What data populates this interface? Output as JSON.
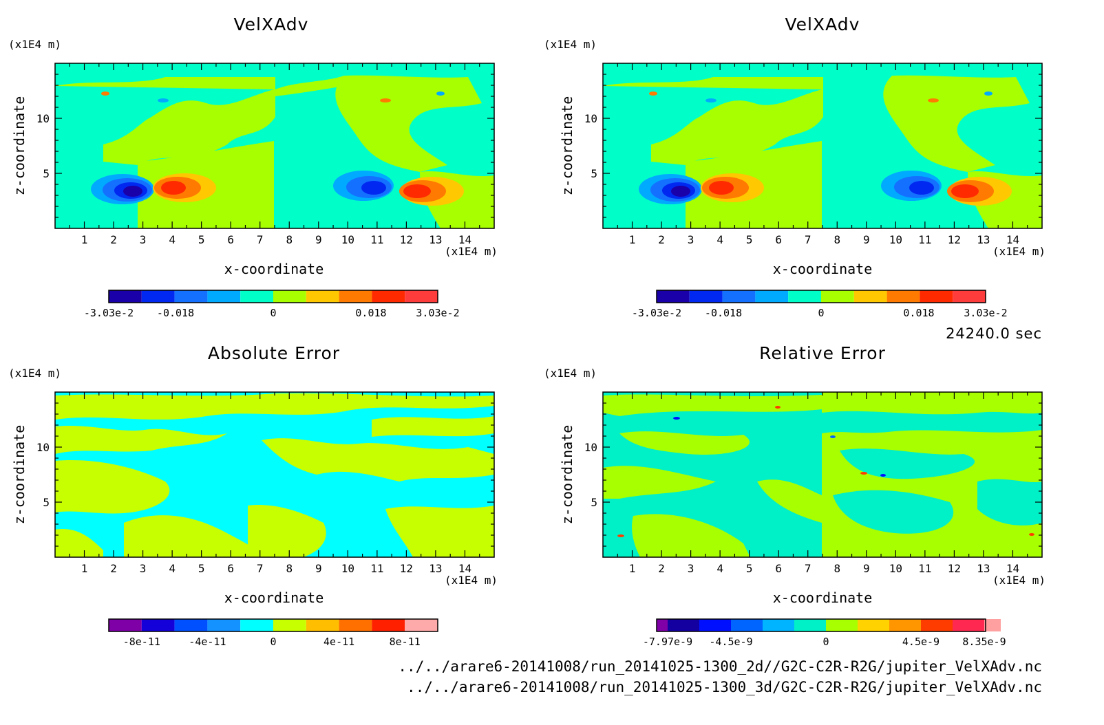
{
  "colors": {
    "velocity_bins": [
      "#1a00a8",
      "#0028f0",
      "#1470ff",
      "#00aaff",
      "#00ffc8",
      "#a8ff00",
      "#ffc800",
      "#ff7a00",
      "#ff2a00",
      "#ff3c3c"
    ],
    "abs_bins": [
      "#8000a8",
      "#1400d8",
      "#0050ff",
      "#1492ff",
      "#00ffff",
      "#c8ff00",
      "#ffbe00",
      "#ff7000",
      "#ff2000",
      "#ffaaaa"
    ],
    "rel_bins": [
      "#8000a8",
      "#1400a0",
      "#0010ff",
      "#0064ff",
      "#00b4ff",
      "#00f0c8",
      "#a8ff00",
      "#ffd200",
      "#ff9600",
      "#ff3c00",
      "#ff2850",
      "#ffa0a0"
    ]
  },
  "x_unit": "(x1E4 m)",
  "y_unit": "(x1E4 m)",
  "xlabel": "x-coordinate",
  "ylabel": "z-coordinate",
  "x_ticks": [
    "1",
    "2",
    "3",
    "4",
    "5",
    "6",
    "7",
    "8",
    "9",
    "10",
    "11",
    "12",
    "13",
    "14"
  ],
  "y_ticks": [
    "5",
    "10"
  ],
  "time_label": "24240.0 sec",
  "footer": {
    "line1": "../../arare6-20141008/run_20141025-1300_2d//G2C-C2R-R2G/jupiter_VelXAdv.nc",
    "line2": "../../arare6-20141008/run_20141025-1300_3d/G2C-C2R-R2G/jupiter_VelXAdv.nc"
  },
  "chart_data": [
    {
      "type": "heatmap",
      "title": "VelXAdv",
      "xlabel": "x-coordinate",
      "ylabel": "z-coordinate",
      "xlim": [
        0,
        15
      ],
      "ylim": [
        0,
        15
      ],
      "colorbar": {
        "labels": [
          "-3.03e-2",
          "-0.018",
          "0",
          "0.018",
          "3.03e-2"
        ],
        "bins": 10,
        "range": [
          -0.0303,
          0.0303
        ]
      },
      "features": [
        {
          "x": 2.7,
          "z": 3.4,
          "value": -0.0303
        },
        {
          "x": 4.2,
          "z": 3.6,
          "value": 0.024
        },
        {
          "x": 10.9,
          "z": 3.5,
          "value": -0.024
        },
        {
          "x": 12.3,
          "z": 3.4,
          "value": 0.0303
        }
      ]
    },
    {
      "type": "heatmap",
      "title": "VelXAdv",
      "xlabel": "x-coordinate",
      "ylabel": "z-coordinate",
      "xlim": [
        0,
        15
      ],
      "ylim": [
        0,
        15
      ],
      "colorbar": {
        "labels": [
          "-3.03e-2",
          "-0.018",
          "0",
          "0.018",
          "3.03e-2"
        ],
        "bins": 10,
        "range": [
          -0.0303,
          0.0303
        ]
      },
      "features": [
        {
          "x": 2.7,
          "z": 3.4,
          "value": -0.0303
        },
        {
          "x": 4.2,
          "z": 3.6,
          "value": 0.024
        },
        {
          "x": 10.9,
          "z": 3.5,
          "value": -0.024
        },
        {
          "x": 12.3,
          "z": 3.4,
          "value": 0.0303
        }
      ]
    },
    {
      "type": "heatmap",
      "title": "Absolute Error",
      "xlabel": "x-coordinate",
      "ylabel": "z-coordinate",
      "xlim": [
        0,
        15
      ],
      "ylim": [
        0,
        15
      ],
      "colorbar": {
        "labels": [
          "-8e-11",
          "-4e-11",
          "0",
          "4e-11",
          "8e-11"
        ],
        "bins": 10,
        "range": [
          -1e-10,
          1e-10
        ]
      }
    },
    {
      "type": "heatmap",
      "title": "Relative Error",
      "xlabel": "x-coordinate",
      "ylabel": "z-coordinate",
      "xlim": [
        0,
        15
      ],
      "ylim": [
        0,
        15
      ],
      "colorbar": {
        "labels": [
          "-7.97e-9",
          "-4.5e-9",
          "0",
          "4.5e-9",
          "8.35e-9"
        ],
        "bins": 12,
        "range": [
          -7.97e-09,
          8.35e-09
        ]
      }
    }
  ]
}
